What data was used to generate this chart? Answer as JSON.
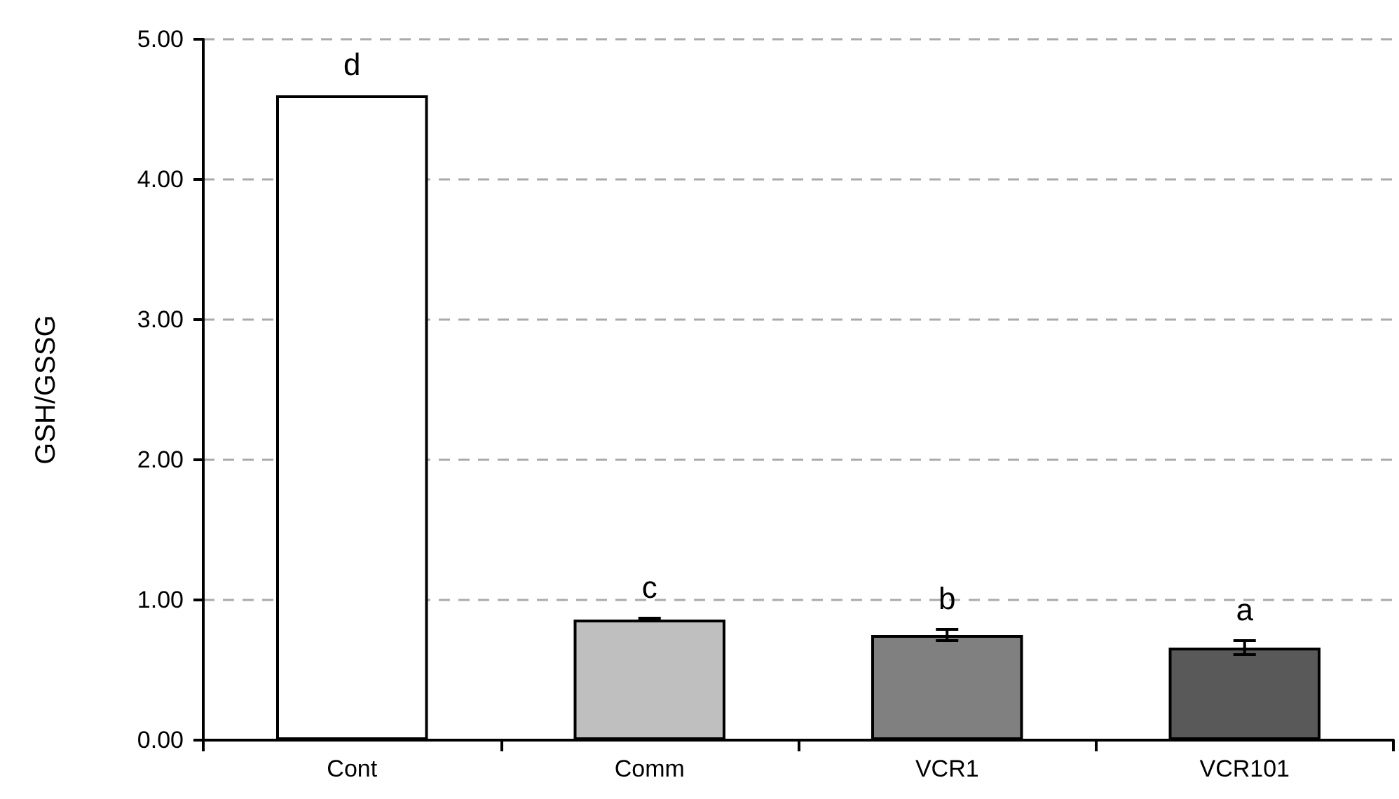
{
  "chart_data": {
    "type": "bar",
    "ylabel": "GSH/GSSG",
    "categories": [
      "Cont",
      "Comm",
      "VCR1",
      "VCR101"
    ],
    "values": [
      4.6,
      0.86,
      0.75,
      0.66
    ],
    "colors": [
      "#ffffff",
      "#bfbfbf",
      "#808080",
      "#595959"
    ],
    "errors": [
      null,
      0.01,
      0.04,
      0.05
    ],
    "ylim": [
      0,
      5
    ],
    "yticks": [
      {
        "value": 0,
        "label": "0.00"
      },
      {
        "value": 1,
        "label": "1.00"
      },
      {
        "value": 2,
        "label": "2.00"
      },
      {
        "value": 3,
        "label": "3.00"
      },
      {
        "value": 4,
        "label": "4.00"
      },
      {
        "value": 5,
        "label": "5.00"
      }
    ],
    "grid": "y",
    "annotations": [
      "d",
      "c",
      "b",
      "a"
    ]
  }
}
